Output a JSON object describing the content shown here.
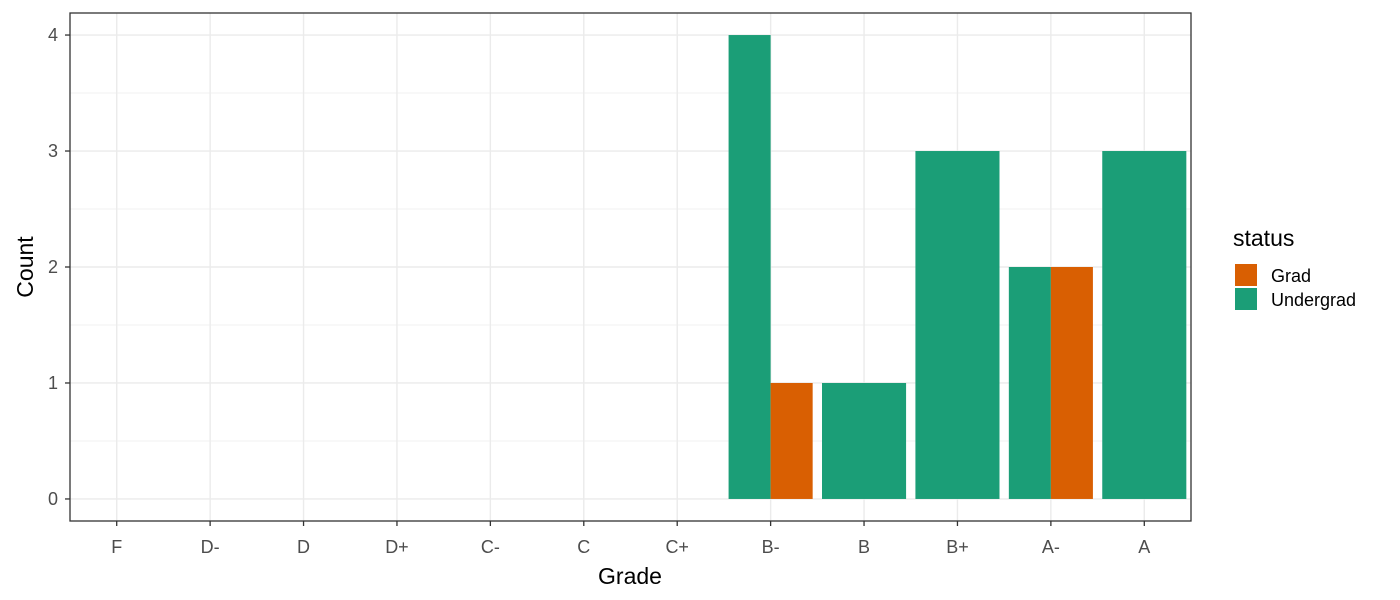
{
  "chart_data": {
    "type": "bar",
    "layout": "dodge",
    "xlabel": "Grade",
    "ylabel": "Count",
    "categories": [
      "F",
      "D-",
      "D",
      "D+",
      "C-",
      "C",
      "C+",
      "B-",
      "B",
      "B+",
      "A-",
      "A"
    ],
    "yticks": [
      "0",
      "1",
      "2",
      "3",
      "4"
    ],
    "ylim": [
      -0.19,
      4.19
    ],
    "grid": true,
    "legend": {
      "title": "status",
      "position": "right"
    },
    "series": [
      {
        "name": "Grad",
        "color": "#D95F02",
        "values": [
          0,
          0,
          0,
          0,
          0,
          0,
          0,
          1,
          0,
          0,
          2,
          0
        ]
      },
      {
        "name": "Undergrad",
        "color": "#1B9E77",
        "values": [
          0,
          0,
          0,
          0,
          0,
          0,
          0,
          4,
          1,
          3,
          2,
          3
        ]
      }
    ],
    "bars": [
      {
        "category": "B-",
        "series": "Undergrad",
        "value": 4,
        "slot": 0,
        "slots": 2
      },
      {
        "category": "B-",
        "series": "Grad",
        "value": 1,
        "slot": 1,
        "slots": 2
      },
      {
        "category": "B",
        "series": "Undergrad",
        "value": 1,
        "slot": 0,
        "slots": 1
      },
      {
        "category": "B+",
        "series": "Undergrad",
        "value": 3,
        "slot": 0,
        "slots": 1
      },
      {
        "category": "A-",
        "series": "Undergrad",
        "value": 2,
        "slot": 0,
        "slots": 2
      },
      {
        "category": "A-",
        "series": "Grad",
        "value": 2,
        "slot": 1,
        "slots": 2
      },
      {
        "category": "A",
        "series": "Undergrad",
        "value": 3,
        "slot": 0,
        "slots": 1
      }
    ]
  }
}
